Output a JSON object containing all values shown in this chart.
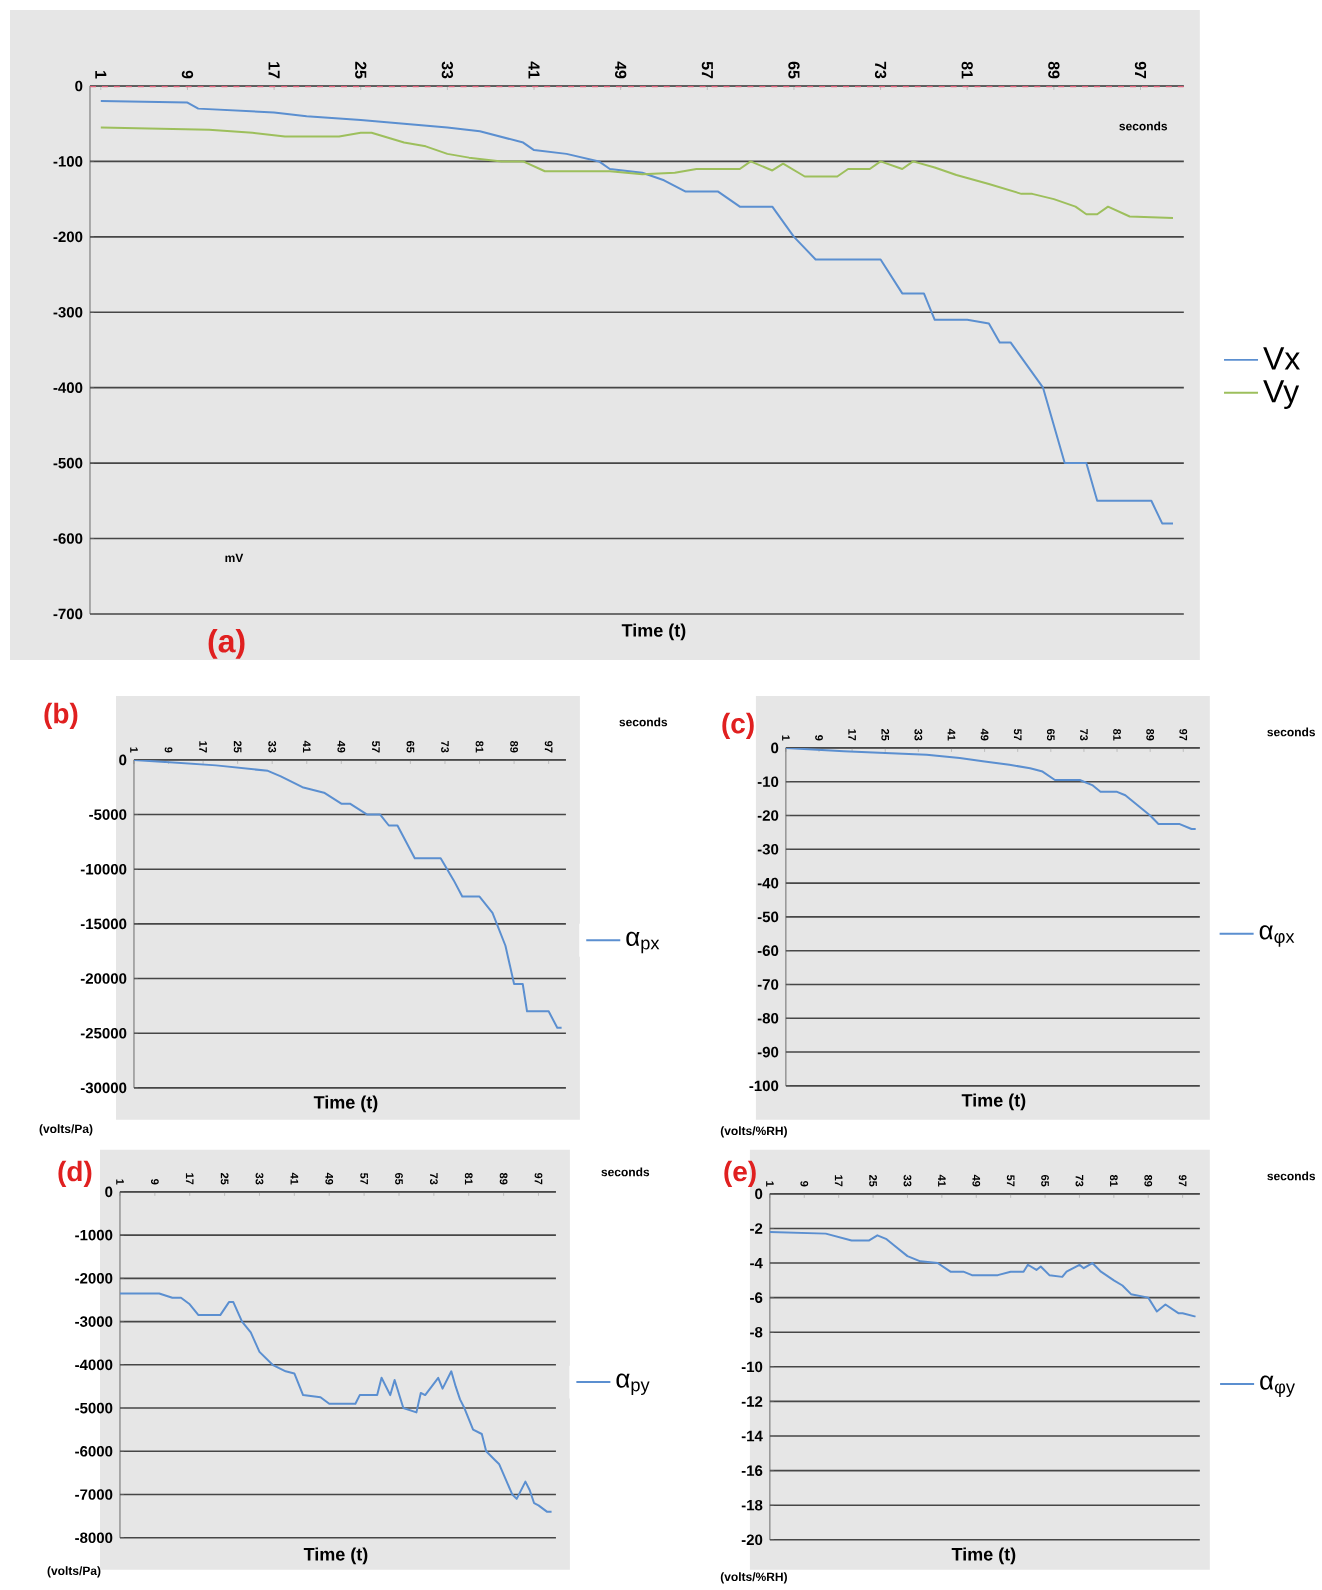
{
  "chart_data": [
    {
      "type": "line",
      "title": "(a)",
      "xlabel": "Time (t)",
      "ylabel": "mV",
      "annotations": [
        "seconds"
      ],
      "xlim": [
        0,
        101
      ],
      "ylim": [
        -700,
        0
      ],
      "xticks": [
        1,
        9,
        17,
        25,
        33,
        41,
        49,
        57,
        65,
        73,
        81,
        89,
        97
      ],
      "yticks": [
        -700,
        -600,
        -500,
        -400,
        -300,
        -200,
        -100,
        0
      ],
      "grid": "y",
      "legend": "right",
      "ref_lines": [
        {
          "axis": "y",
          "value": 0,
          "color": "#e0607a",
          "line_style": "dashed"
        }
      ],
      "series": [
        {
          "name": "Vx",
          "color": "#5b8fd0",
          "x": [
            1,
            9,
            10,
            17,
            20,
            25,
            29,
            33,
            36,
            40,
            41,
            44,
            47,
            48,
            51,
            53,
            55,
            58,
            60,
            63,
            65,
            67,
            73,
            75,
            77,
            78,
            81,
            83,
            84,
            85,
            88,
            90,
            92,
            93,
            98,
            99,
            100
          ],
          "values": [
            -20,
            -22,
            -30,
            -35,
            -40,
            -45,
            -50,
            -55,
            -60,
            -75,
            -85,
            -90,
            -100,
            -110,
            -115,
            -125,
            -140,
            -140,
            -160,
            -160,
            -200,
            -230,
            -230,
            -275,
            -275,
            -310,
            -310,
            -315,
            -340,
            -340,
            -400,
            -500,
            -500,
            -550,
            -550,
            -580,
            -580
          ]
        },
        {
          "name": "Vy",
          "color": "#9dbf5c",
          "x": [
            1,
            11,
            15,
            18,
            23,
            25,
            26,
            29,
            31,
            33,
            35,
            38,
            40,
            42,
            48,
            51,
            54,
            56,
            60,
            61,
            63,
            64,
            66,
            69,
            70,
            72,
            73,
            75,
            76,
            78,
            80,
            83,
            86,
            87,
            89,
            91,
            92,
            93,
            94,
            96,
            100
          ],
          "values": [
            -55,
            -58,
            -62,
            -67,
            -67,
            -62,
            -62,
            -75,
            -80,
            -90,
            -95,
            -100,
            -100,
            -113,
            -113,
            -117,
            -115,
            -110,
            -110,
            -100,
            -112,
            -103,
            -120,
            -120,
            -110,
            -110,
            -100,
            -110,
            -100,
            -108,
            -118,
            -130,
            -143,
            -143,
            -150,
            -160,
            -170,
            -170,
            -160,
            -173,
            -175
          ]
        }
      ]
    },
    {
      "type": "line",
      "title": "(b)",
      "xlabel": "Time (t)",
      "ylabel": "(volts/Pa)",
      "annotations": [
        "seconds"
      ],
      "xlim": [
        1,
        101
      ],
      "ylim": [
        -30000,
        0
      ],
      "xticks": [
        1,
        9,
        17,
        25,
        33,
        41,
        49,
        57,
        65,
        73,
        81,
        89,
        97
      ],
      "yticks": [
        -30000,
        -25000,
        -20000,
        -15000,
        -10000,
        -5000,
        0
      ],
      "grid": "y",
      "legend": "right",
      "series": [
        {
          "name": "α$_{px}$",
          "color": "#5b8fd0",
          "x": [
            1,
            20,
            32,
            35,
            40,
            45,
            49,
            51,
            55,
            58,
            60,
            62,
            66,
            72,
            75,
            77,
            81,
            84,
            87,
            89,
            91,
            92,
            97,
            99,
            100
          ],
          "values": [
            0,
            -500,
            -1000,
            -1500,
            -2500,
            -3000,
            -4000,
            -4000,
            -5000,
            -5000,
            -6000,
            -6000,
            -9000,
            -9000,
            -11000,
            -12500,
            -12500,
            -14000,
            -17000,
            -20500,
            -20500,
            -23000,
            -23000,
            -24500,
            -24500
          ]
        }
      ]
    },
    {
      "type": "line",
      "title": "(c)",
      "xlabel": "Time (t)",
      "ylabel": "(volts/%RH)",
      "annotations": [
        "seconds"
      ],
      "xlim": [
        1,
        101
      ],
      "ylim": [
        -100,
        0
      ],
      "xticks": [
        1,
        9,
        17,
        25,
        33,
        41,
        49,
        57,
        65,
        73,
        81,
        89,
        97
      ],
      "yticks": [
        -100,
        -90,
        -80,
        -70,
        -60,
        -50,
        -40,
        -30,
        -20,
        -10,
        0
      ],
      "grid": "y",
      "legend": "right",
      "series": [
        {
          "name": "α$_{φx}$",
          "color": "#5b8fd0",
          "x": [
            1,
            15,
            35,
            43,
            49,
            55,
            60,
            63,
            66,
            72,
            75,
            77,
            81,
            83,
            86,
            89,
            91,
            96,
            99,
            100
          ],
          "values": [
            0,
            -1,
            -2,
            -3,
            -4,
            -5,
            -6,
            -7,
            -9.5,
            -9.5,
            -11,
            -13,
            -13,
            -14,
            -17,
            -20,
            -22.5,
            -22.5,
            -24,
            -24
          ]
        }
      ]
    },
    {
      "type": "line",
      "title": "(d)",
      "xlabel": "Time (t)",
      "ylabel": "(volts/Pa)",
      "annotations": [
        "seconds"
      ],
      "xlim": [
        1,
        101
      ],
      "ylim": [
        -8000,
        0
      ],
      "xticks": [
        1,
        9,
        17,
        25,
        33,
        41,
        49,
        57,
        65,
        73,
        81,
        89,
        97
      ],
      "yticks": [
        -8000,
        -7000,
        -6000,
        -5000,
        -4000,
        -3000,
        -2000,
        -1000,
        0
      ],
      "grid": "y",
      "legend": "right",
      "series": [
        {
          "name": "α$_{py}$",
          "color": "#5b8fd0",
          "x": [
            1,
            10,
            13,
            15,
            17,
            19,
            24,
            26,
            27,
            29,
            31,
            33,
            36,
            39,
            41,
            43,
            47,
            49,
            55,
            56,
            60,
            61,
            63,
            64,
            66,
            69,
            70,
            71,
            74,
            75,
            77,
            78,
            79,
            80,
            82,
            84,
            85,
            87,
            88,
            91,
            92,
            94,
            95,
            96,
            97,
            99,
            100
          ],
          "values": [
            -2350,
            -2350,
            -2450,
            -2450,
            -2600,
            -2850,
            -2850,
            -2550,
            -2550,
            -3000,
            -3250,
            -3700,
            -4000,
            -4150,
            -4200,
            -4700,
            -4750,
            -4900,
            -4900,
            -4700,
            -4700,
            -4300,
            -4700,
            -4350,
            -5000,
            -5100,
            -4650,
            -4700,
            -4300,
            -4550,
            -4150,
            -4500,
            -4800,
            -5000,
            -5500,
            -5600,
            -6000,
            -6200,
            -6300,
            -7000,
            -7100,
            -6700,
            -6900,
            -7200,
            -7250,
            -7400,
            -7400
          ]
        }
      ]
    },
    {
      "type": "line",
      "title": "(e)",
      "xlabel": "Time (t)",
      "ylabel": "(volts/%RH)",
      "annotations": [
        "seconds"
      ],
      "xlim": [
        1,
        101
      ],
      "ylim": [
        -20,
        0
      ],
      "xticks": [
        1,
        9,
        17,
        25,
        33,
        41,
        49,
        57,
        65,
        73,
        81,
        89,
        97
      ],
      "yticks": [
        -20,
        -18,
        -16,
        -14,
        -12,
        -10,
        -8,
        -6,
        -4,
        -2,
        0
      ],
      "grid": "y",
      "legend": "right",
      "series": [
        {
          "name": "α$_{φy}$",
          "color": "#5b8fd0",
          "x": [
            1,
            14,
            17,
            20,
            24,
            26,
            28,
            30,
            33,
            36,
            40,
            43,
            46,
            48,
            54,
            57,
            60,
            61,
            63,
            64,
            66,
            69,
            70,
            73,
            74,
            76,
            78,
            81,
            83,
            85,
            89,
            91,
            93,
            96,
            97,
            100
          ],
          "values": [
            -2.2,
            -2.3,
            -2.5,
            -2.7,
            -2.7,
            -2.4,
            -2.6,
            -3,
            -3.6,
            -3.9,
            -4,
            -4.5,
            -4.5,
            -4.7,
            -4.7,
            -4.5,
            -4.5,
            -4.1,
            -4.4,
            -4.2,
            -4.7,
            -4.8,
            -4.5,
            -4.1,
            -4.3,
            -4,
            -4.5,
            -5,
            -5.3,
            -5.8,
            -6,
            -6.8,
            -6.4,
            -6.9,
            -6.9,
            -7.1
          ]
        }
      ]
    }
  ]
}
